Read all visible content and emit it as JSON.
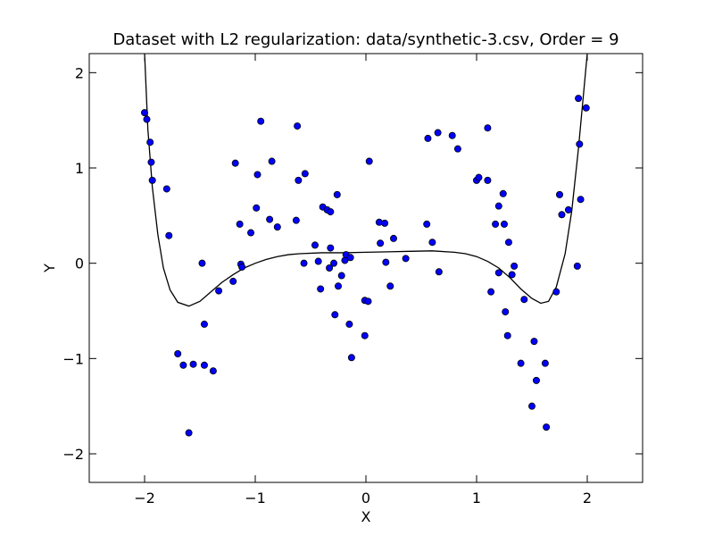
{
  "chart_data": {
    "type": "scatter",
    "title": "Dataset with L2 regularization: data/synthetic-3.csv, Order = 9",
    "xlabel": "X",
    "ylabel": "Y",
    "xlim": [
      -2.5,
      2.5
    ],
    "ylim": [
      -2.3,
      2.2
    ],
    "xticks": [
      -2,
      -1,
      0,
      1,
      2
    ],
    "xtick_labels": [
      "−2",
      "−1",
      "0",
      "1",
      "2"
    ],
    "yticks": [
      -2,
      -1,
      0,
      1,
      2
    ],
    "ytick_labels": [
      "−2",
      "−1",
      "0",
      "1",
      "2"
    ],
    "grid": false,
    "point_color": "#0000ff",
    "line_color": "#000000",
    "points": [
      [
        -2.0,
        1.58
      ],
      [
        -1.98,
        1.51
      ],
      [
        -1.95,
        1.27
      ],
      [
        -1.94,
        1.06
      ],
      [
        -1.93,
        0.87
      ],
      [
        -1.8,
        0.78
      ],
      [
        -1.78,
        0.29
      ],
      [
        -1.7,
        -0.95
      ],
      [
        -1.65,
        -1.07
      ],
      [
        -1.6,
        -1.78
      ],
      [
        -1.56,
        -1.06
      ],
      [
        -1.48,
        0.0
      ],
      [
        -1.46,
        -0.64
      ],
      [
        -1.46,
        -1.07
      ],
      [
        -1.38,
        -1.13
      ],
      [
        -1.33,
        -0.29
      ],
      [
        -1.2,
        -0.19
      ],
      [
        -1.18,
        1.05
      ],
      [
        -1.14,
        0.41
      ],
      [
        -1.13,
        -0.01
      ],
      [
        -1.12,
        -0.04
      ],
      [
        -1.04,
        0.32
      ],
      [
        -0.99,
        0.58
      ],
      [
        -0.98,
        0.93
      ],
      [
        -0.95,
        1.49
      ],
      [
        -0.87,
        0.46
      ],
      [
        -0.85,
        1.07
      ],
      [
        -0.8,
        0.38
      ],
      [
        -0.63,
        0.45
      ],
      [
        -0.62,
        1.44
      ],
      [
        -0.61,
        0.87
      ],
      [
        -0.56,
        0.0
      ],
      [
        -0.55,
        0.94
      ],
      [
        -0.46,
        0.19
      ],
      [
        -0.43,
        0.02
      ],
      [
        -0.41,
        -0.27
      ],
      [
        -0.39,
        0.59
      ],
      [
        -0.35,
        0.56
      ],
      [
        -0.33,
        -0.05
      ],
      [
        -0.32,
        0.54
      ],
      [
        -0.32,
        0.16
      ],
      [
        -0.29,
        0.0
      ],
      [
        -0.28,
        -0.54
      ],
      [
        -0.26,
        0.72
      ],
      [
        -0.25,
        -0.24
      ],
      [
        -0.22,
        -0.13
      ],
      [
        -0.19,
        0.03
      ],
      [
        -0.18,
        0.09
      ],
      [
        -0.15,
        -0.64
      ],
      [
        -0.14,
        0.06
      ],
      [
        -0.13,
        -0.99
      ],
      [
        -0.01,
        -0.39
      ],
      [
        -0.01,
        -0.76
      ],
      [
        0.02,
        -0.4
      ],
      [
        0.03,
        1.07
      ],
      [
        0.12,
        0.43
      ],
      [
        0.13,
        0.21
      ],
      [
        0.17,
        0.42
      ],
      [
        0.18,
        0.01
      ],
      [
        0.22,
        -0.24
      ],
      [
        0.25,
        0.26
      ],
      [
        0.36,
        0.05
      ],
      [
        0.55,
        0.41
      ],
      [
        0.56,
        1.31
      ],
      [
        0.6,
        0.22
      ],
      [
        0.65,
        1.37
      ],
      [
        0.66,
        -0.09
      ],
      [
        0.78,
        1.34
      ],
      [
        0.83,
        1.2
      ],
      [
        1.0,
        0.87
      ],
      [
        1.02,
        0.9
      ],
      [
        1.1,
        1.42
      ],
      [
        1.1,
        0.87
      ],
      [
        1.13,
        -0.3
      ],
      [
        1.17,
        0.41
      ],
      [
        1.2,
        0.6
      ],
      [
        1.2,
        -0.1
      ],
      [
        1.24,
        0.73
      ],
      [
        1.25,
        0.41
      ],
      [
        1.26,
        -0.51
      ],
      [
        1.28,
        -0.76
      ],
      [
        1.29,
        0.22
      ],
      [
        1.32,
        -0.12
      ],
      [
        1.34,
        -0.03
      ],
      [
        1.4,
        -1.05
      ],
      [
        1.43,
        -0.38
      ],
      [
        1.5,
        -1.5
      ],
      [
        1.52,
        -0.82
      ],
      [
        1.54,
        -1.23
      ],
      [
        1.62,
        -1.05
      ],
      [
        1.63,
        -1.72
      ],
      [
        1.72,
        -0.3
      ],
      [
        1.75,
        0.72
      ],
      [
        1.77,
        0.51
      ],
      [
        1.83,
        0.56
      ],
      [
        1.91,
        -0.03
      ],
      [
        1.92,
        1.73
      ],
      [
        1.93,
        1.25
      ],
      [
        1.94,
        0.67
      ],
      [
        1.99,
        1.63
      ]
    ],
    "fit_curve": [
      [
        -2.0,
        2.2
      ],
      [
        -1.97,
        1.4
      ],
      [
        -1.93,
        0.8
      ],
      [
        -1.88,
        0.3
      ],
      [
        -1.83,
        -0.05
      ],
      [
        -1.77,
        -0.28
      ],
      [
        -1.7,
        -0.41
      ],
      [
        -1.6,
        -0.45
      ],
      [
        -1.5,
        -0.4
      ],
      [
        -1.4,
        -0.3
      ],
      [
        -1.3,
        -0.2
      ],
      [
        -1.2,
        -0.12
      ],
      [
        -1.1,
        -0.05
      ],
      [
        -1.0,
        0.0
      ],
      [
        -0.9,
        0.04
      ],
      [
        -0.8,
        0.07
      ],
      [
        -0.7,
        0.09
      ],
      [
        -0.6,
        0.1
      ],
      [
        -0.4,
        0.11
      ],
      [
        -0.2,
        0.11
      ],
      [
        0.0,
        0.115
      ],
      [
        0.2,
        0.12
      ],
      [
        0.4,
        0.125
      ],
      [
        0.6,
        0.13
      ],
      [
        0.8,
        0.115
      ],
      [
        0.9,
        0.1
      ],
      [
        1.0,
        0.07
      ],
      [
        1.1,
        0.02
      ],
      [
        1.2,
        -0.05
      ],
      [
        1.3,
        -0.15
      ],
      [
        1.4,
        -0.27
      ],
      [
        1.5,
        -0.37
      ],
      [
        1.58,
        -0.42
      ],
      [
        1.65,
        -0.4
      ],
      [
        1.72,
        -0.25
      ],
      [
        1.8,
        0.1
      ],
      [
        1.86,
        0.55
      ],
      [
        1.92,
        1.2
      ],
      [
        1.96,
        1.7
      ],
      [
        2.0,
        2.2
      ]
    ]
  }
}
